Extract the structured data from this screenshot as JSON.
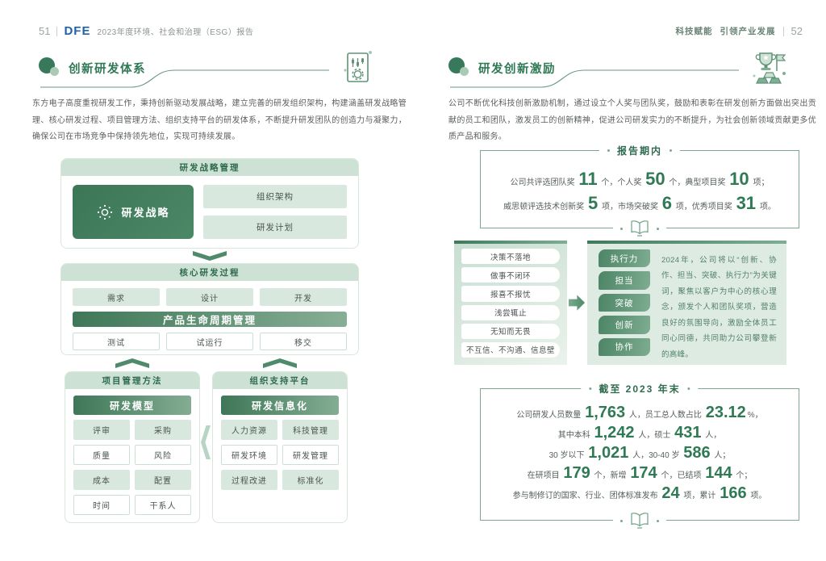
{
  "colors": {
    "accent_green": "#2F7A55",
    "light_green_fill": "#D9E8DE",
    "logo_blue": "#1E62AE"
  },
  "left_page": {
    "page_number": "51",
    "logo": "DFE",
    "report_title": "2023年度环境、社会和治理（ESG）报告",
    "section_title": "创新研发体系",
    "intro": "东方电子高度重视研发工作，秉持创新驱动发展战略，建立完善的研发组织架构，构建涵盖研发战略管理、核心研发过程、项目管理方法、组织支持平台的研发体系，不断提升研发团队的创造力与凝聚力，确保公司在市场竞争中保持领先地位，实现可持续发展。",
    "strategy": {
      "header": "研发战略管理",
      "main": "研发战略",
      "item1": "组织架构",
      "item2": "研发计划"
    },
    "process": {
      "header": "核心研发过程",
      "c1": "需求",
      "c2": "设计",
      "c3": "开发",
      "plm": "产品生命周期管理",
      "c4": "测试",
      "c5": "试运行",
      "c6": "移交"
    },
    "project": {
      "header": "项目管理方法",
      "bar": "研发模型",
      "c1": "评审",
      "c2": "采购",
      "c3": "质量",
      "c4": "风险",
      "c5": "成本",
      "c6": "配置",
      "c7": "时间",
      "c8": "干系人"
    },
    "platform": {
      "header": "组织支持平台",
      "bar": "研发信息化",
      "c1": "人力资源",
      "c2": "科技管理",
      "c3": "研发环境",
      "c4": "研发管理",
      "c5": "过程改进",
      "c6": "标准化"
    }
  },
  "right_page": {
    "page_number": "52",
    "header_phrase1": "科技赋能",
    "header_phrase2": "引领产业发展",
    "section_title": "研发创新激励",
    "intro": "公司不断优化科技创新激励机制，通过设立个人奖与团队奖，鼓励和表彰在研发创新方面做出突出贡献的员工和团队，激发员工的创新精神，促进公司研发实力的不断提升，为社会创新领域贡献更多优质产品和服务。",
    "awards": {
      "title": "报告期内",
      "line1": [
        {
          "t": "公司共评选团队奖 "
        },
        {
          "t": "11",
          "em": true
        },
        {
          "t": " 个，个人奖 "
        },
        {
          "t": "50",
          "em": true
        },
        {
          "t": " 个，典型项目奖 "
        },
        {
          "t": "10",
          "em": true
        },
        {
          "t": " 项；"
        }
      ],
      "line2": [
        {
          "t": "威思顿评选技术创新奖 "
        },
        {
          "t": "5",
          "em": true
        },
        {
          "t": " 项，市场突破奖 "
        },
        {
          "t": "6",
          "em": true
        },
        {
          "t": " 项，优秀项目奖 "
        },
        {
          "t": "31",
          "em": true
        },
        {
          "t": " 项。"
        }
      ]
    },
    "culture": {
      "negatives": [
        "决策不落地",
        "做事不闭环",
        "报喜不报忧",
        "浅尝辄止",
        "无知而无畏",
        "不互信、不沟通、信息壁"
      ],
      "positives": [
        "执行力",
        "担当",
        "突破",
        "创新",
        "协作"
      ],
      "note": "2024年，公司将以“创新、协作、担当、突破、执行力”为关键词，聚焦以客户为中心的核心理念，颁发个人和团队奖项，营造良好的氛围导向，激励全体员工同心同德，共同助力公司攀登新的高峰。"
    },
    "yearend": {
      "title": "截至 2023 年末",
      "line1": [
        {
          "t": "公司研发人员数量 "
        },
        {
          "t": "1,763",
          "em": true
        },
        {
          "t": " 人，员工总人数占比 "
        },
        {
          "t": "23.12",
          "em": true
        },
        {
          "t": "%，"
        }
      ],
      "line2": [
        {
          "t": "其中本科 "
        },
        {
          "t": "1,242",
          "em": true
        },
        {
          "t": " 人，硕士 "
        },
        {
          "t": "431",
          "em": true
        },
        {
          "t": " 人，"
        }
      ],
      "line3": [
        {
          "t": "30 岁以下 "
        },
        {
          "t": "1,021",
          "em": true
        },
        {
          "t": " 人，30-40 岁 "
        },
        {
          "t": "586",
          "em": true
        },
        {
          "t": " 人；"
        }
      ],
      "line4": [
        {
          "t": "在研项目 "
        },
        {
          "t": "179",
          "em": true
        },
        {
          "t": " 个，新增 "
        },
        {
          "t": "174",
          "em": true
        },
        {
          "t": " 个，已结项 "
        },
        {
          "t": "144",
          "em": true
        },
        {
          "t": " 个；"
        }
      ],
      "line5": [
        {
          "t": "参与制修订的国家、行业、团体标准发布 "
        },
        {
          "t": "24",
          "em": true
        },
        {
          "t": " 项，累计 "
        },
        {
          "t": "166",
          "em": true
        },
        {
          "t": " 项。"
        }
      ]
    }
  }
}
